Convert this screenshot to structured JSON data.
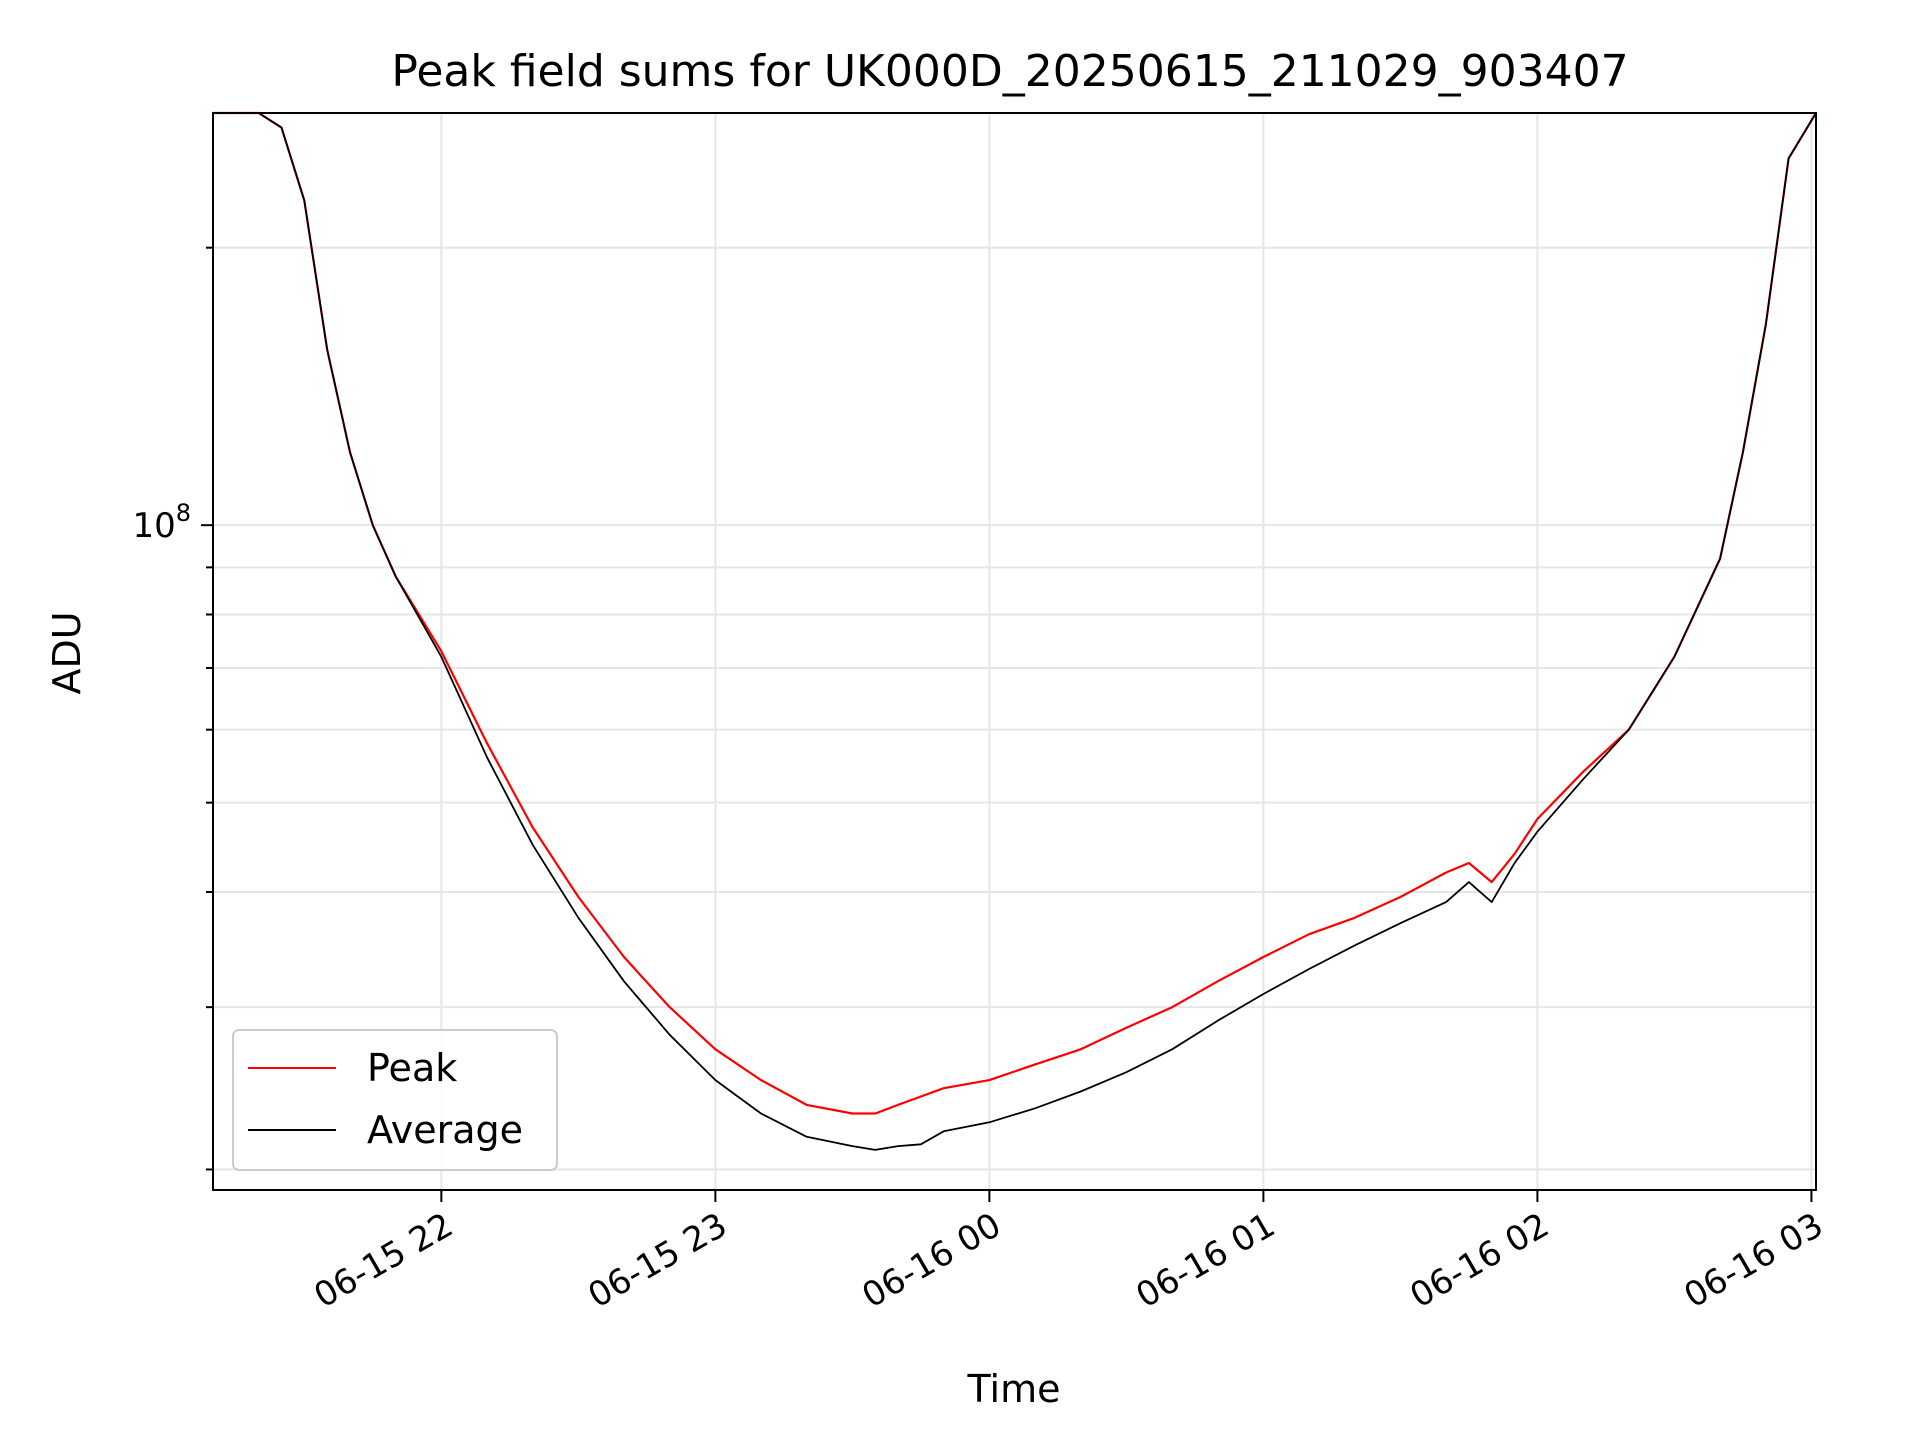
{
  "chart_data": {
    "type": "line",
    "title": "Peak field sums for UK000D_20250615_211029_903407",
    "xlabel": "Time",
    "ylabel": "ADU",
    "y_scale": "log",
    "ylim": [
      19000000.0,
      280000000.0
    ],
    "xlim": [
      "2025-06-15 21:10",
      "2025-06-16 03:01"
    ],
    "grid": true,
    "legend": {
      "placement": "lower-left"
    },
    "x_ticks": [
      "2025-06-15 22:00",
      "2025-06-15 23:00",
      "2025-06-16 00:00",
      "2025-06-16 01:00",
      "2025-06-16 02:00",
      "2025-06-16 03:00"
    ],
    "x_tick_labels": [
      "06-15 22",
      "06-15 23",
      "06-16 00",
      "06-16 01",
      "06-16 02",
      "06-16 03"
    ],
    "y_ticks": [
      20000000.0,
      30000000.0,
      40000000.0,
      50000000.0,
      60000000.0,
      70000000.0,
      80000000.0,
      90000000.0,
      100000000.0,
      200000000.0
    ],
    "y_tick_labels": [
      {
        "base": "10",
        "exp": "8",
        "value": 100000000.0
      }
    ],
    "colors": {
      "peak": "#ff0000",
      "average": "#000000",
      "grid": "#e6e6e6"
    },
    "x": [
      "2025-06-15 21:10",
      "2025-06-15 21:20",
      "2025-06-15 21:25",
      "2025-06-15 21:30",
      "2025-06-15 21:35",
      "2025-06-15 21:40",
      "2025-06-15 21:45",
      "2025-06-15 21:50",
      "2025-06-15 22:00",
      "2025-06-15 22:10",
      "2025-06-15 22:20",
      "2025-06-15 22:30",
      "2025-06-15 22:40",
      "2025-06-15 22:50",
      "2025-06-15 23:00",
      "2025-06-15 23:10",
      "2025-06-15 23:20",
      "2025-06-15 23:30",
      "2025-06-15 23:35",
      "2025-06-15 23:40",
      "2025-06-15 23:45",
      "2025-06-15 23:50",
      "2025-06-16 00:00",
      "2025-06-16 00:10",
      "2025-06-16 00:20",
      "2025-06-16 00:30",
      "2025-06-16 00:40",
      "2025-06-16 00:50",
      "2025-06-16 01:00",
      "2025-06-16 01:10",
      "2025-06-16 01:20",
      "2025-06-16 01:30",
      "2025-06-16 01:40",
      "2025-06-16 01:45",
      "2025-06-16 01:50",
      "2025-06-16 01:55",
      "2025-06-16 02:00",
      "2025-06-16 02:10",
      "2025-06-16 02:20",
      "2025-06-16 02:30",
      "2025-06-16 02:40",
      "2025-06-16 02:45",
      "2025-06-16 02:50",
      "2025-06-16 02:55",
      "2025-06-16 03:01"
    ],
    "series": [
      {
        "name": "Peak",
        "values": [
          280000000.0,
          280000000.0,
          270000000.0,
          225000000.0,
          155000000.0,
          120000000.0,
          100000000.0,
          88000000.0,
          73000000.0,
          58000000.0,
          47000000.0,
          39500000.0,
          34000000.0,
          30000000.0,
          27000000.0,
          25000000.0,
          23500000.0,
          23000000.0,
          23000000.0,
          23500000.0,
          24000000.0,
          24500000.0,
          25000000.0,
          26000000.0,
          27000000.0,
          28500000.0,
          30000000.0,
          32000000.0,
          34000000.0,
          36000000.0,
          37500000.0,
          39500000.0,
          42000000.0,
          43000000.0,
          41000000.0,
          44000000.0,
          48000000.0,
          54000000.0,
          60000000.0,
          72000000.0,
          92000000.0,
          120000000.0,
          165000000.0,
          250000000.0,
          280000000.0
        ]
      },
      {
        "name": "Average",
        "values": [
          280000000.0,
          280000000.0,
          270000000.0,
          225000000.0,
          155000000.0,
          120000000.0,
          100000000.0,
          88000000.0,
          72000000.0,
          56000000.0,
          45000000.0,
          37500000.0,
          32000000.0,
          28000000.0,
          25000000.0,
          23000000.0,
          21700000.0,
          21200000.0,
          21000000.0,
          21200000.0,
          21300000.0,
          22000000.0,
          22500000.0,
          23300000.0,
          24300000.0,
          25500000.0,
          27000000.0,
          29000000.0,
          31000000.0,
          33000000.0,
          35000000.0,
          37000000.0,
          39000000.0,
          41000000.0,
          39000000.0,
          43000000.0,
          46500000.0,
          53000000.0,
          60000000.0,
          72000000.0,
          92000000.0,
          120000000.0,
          165000000.0,
          250000000.0,
          280000000.0
        ]
      }
    ]
  }
}
